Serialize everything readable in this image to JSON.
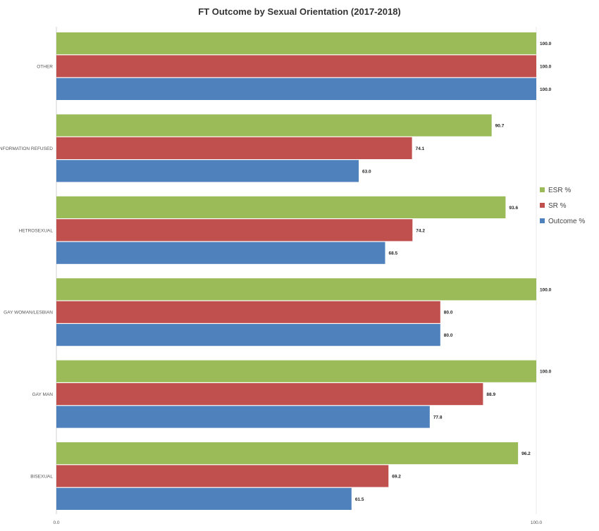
{
  "chart_data": {
    "type": "bar",
    "orientation": "horizontal",
    "title": "FT Outcome by Sexual Orientation (2017-2018)",
    "categories": [
      "OTHER",
      "INFORMATION REFUSED",
      "HETROSEXUAL",
      "GAY WOMAN/LESBIAN",
      "GAY MAN",
      "BISEXUAL"
    ],
    "series": [
      {
        "name": "ESR %",
        "color": "#9bbb59",
        "values": [
          100.0,
          90.7,
          93.6,
          100.0,
          100.0,
          96.2
        ],
        "labels": [
          "100.0",
          "90.7",
          "93.6",
          "100.0",
          "100.0",
          "96.2"
        ]
      },
      {
        "name": "SR %",
        "color": "#c0504d",
        "values": [
          100.0,
          74.1,
          74.2,
          80.0,
          88.9,
          69.2
        ],
        "labels": [
          "100.0",
          "74.1",
          "74.2",
          "80.0",
          "88.9",
          "69.2"
        ]
      },
      {
        "name": "Outcome %",
        "color": "#4f81bd",
        "values": [
          100.0,
          63.0,
          68.5,
          80.0,
          77.8,
          61.5
        ],
        "labels": [
          "100.0",
          "63.0",
          "68.5",
          "80.0",
          "77.8",
          "61.5"
        ]
      }
    ],
    "xlim": [
      0,
      100
    ],
    "x_ticks": [
      "0.0",
      "100.0"
    ],
    "legend_position": "right",
    "grid": false
  }
}
